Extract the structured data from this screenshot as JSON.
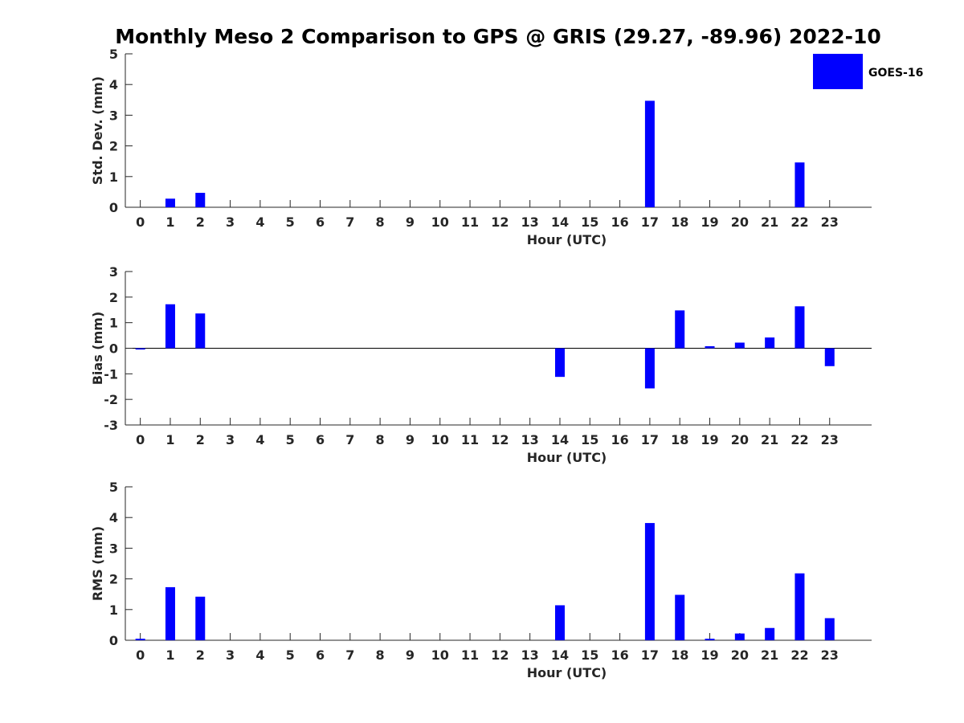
{
  "title": "Monthly Meso 2 Comparison to GPS @ GRIS (29.27, -89.96) 2022-10",
  "legend": {
    "label": "GOES-16",
    "color": "#0000ff",
    "position": "top-right"
  },
  "colors": {
    "bar": "#0000ff",
    "axis": "#262626",
    "zero_line": "#000000"
  },
  "chart_data": [
    {
      "type": "bar",
      "xlabel": "Hour (UTC)",
      "ylabel": "Std. Dev. (mm)",
      "ylim": [
        0,
        5
      ],
      "yticks": [
        0,
        1,
        2,
        3,
        4,
        5
      ],
      "categories": [
        "0",
        "1",
        "2",
        "3",
        "4",
        "5",
        "6",
        "7",
        "8",
        "9",
        "10",
        "11",
        "12",
        "13",
        "14",
        "15",
        "16",
        "17",
        "18",
        "19",
        "20",
        "21",
        "22",
        "23"
      ],
      "series": [
        {
          "name": "GOES-16",
          "values": [
            0,
            0.28,
            0.47,
            0,
            0,
            0,
            0,
            0,
            0,
            0,
            0,
            0,
            0,
            0,
            0,
            0,
            0,
            3.47,
            0,
            0,
            0,
            0,
            1.46,
            0
          ]
        }
      ],
      "grid": false
    },
    {
      "type": "bar",
      "xlabel": "Hour (UTC)",
      "ylabel": "Bias (mm)",
      "ylim": [
        -3,
        3
      ],
      "yticks": [
        -3,
        -2,
        -1,
        0,
        1,
        2,
        3
      ],
      "categories": [
        "0",
        "1",
        "2",
        "3",
        "4",
        "5",
        "6",
        "7",
        "8",
        "9",
        "10",
        "11",
        "12",
        "13",
        "14",
        "15",
        "16",
        "17",
        "18",
        "19",
        "20",
        "21",
        "22",
        "23"
      ],
      "series": [
        {
          "name": "GOES-16",
          "values": [
            -0.05,
            1.72,
            1.36,
            0,
            0,
            0,
            0,
            0,
            0,
            0,
            0,
            0,
            0,
            0,
            -1.12,
            0,
            0,
            -1.57,
            1.48,
            0.08,
            0.22,
            0.42,
            1.64,
            -0.7
          ]
        }
      ],
      "grid": false
    },
    {
      "type": "bar",
      "xlabel": "Hour (UTC)",
      "ylabel": "RMS (mm)",
      "ylim": [
        0,
        5
      ],
      "yticks": [
        0,
        1,
        2,
        3,
        4,
        5
      ],
      "categories": [
        "0",
        "1",
        "2",
        "3",
        "4",
        "5",
        "6",
        "7",
        "8",
        "9",
        "10",
        "11",
        "12",
        "13",
        "14",
        "15",
        "16",
        "17",
        "18",
        "19",
        "20",
        "21",
        "22",
        "23"
      ],
      "series": [
        {
          "name": "GOES-16",
          "values": [
            0.05,
            1.73,
            1.42,
            0,
            0,
            0,
            0,
            0,
            0,
            0,
            0,
            0,
            0,
            0,
            1.14,
            0,
            0,
            3.82,
            1.48,
            0.05,
            0.22,
            0.4,
            2.18,
            0.72
          ]
        }
      ],
      "grid": false
    }
  ]
}
